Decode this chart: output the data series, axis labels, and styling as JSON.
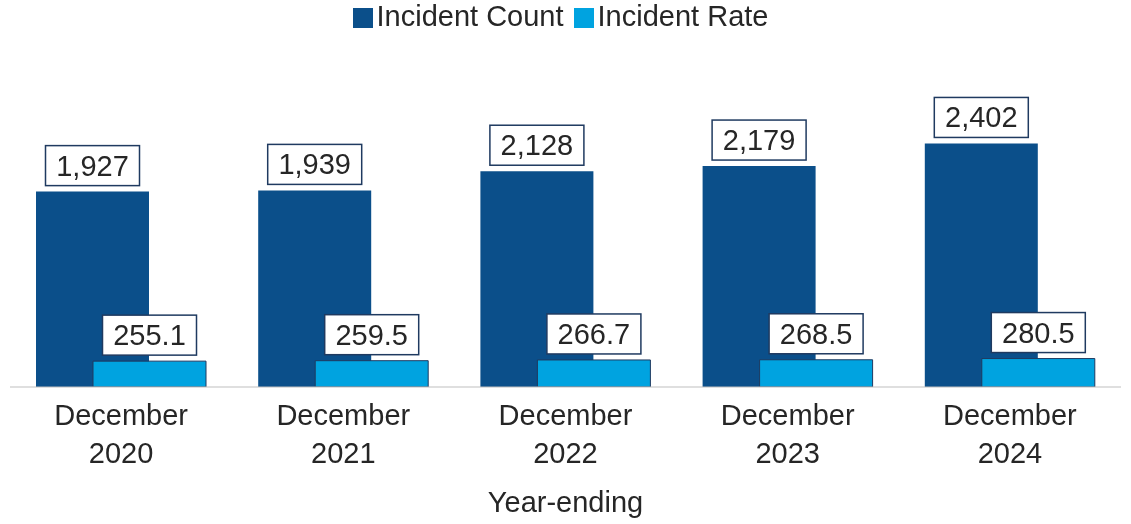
{
  "chart_data": {
    "type": "bar",
    "xlabel": "Year-ending",
    "categories": [
      "December 2020",
      "December 2021",
      "December 2022",
      "December 2023",
      "December 2024"
    ],
    "series": [
      {
        "name": "Incident Count",
        "color": "#0b4f8a",
        "values": [
          1927,
          1939,
          2128,
          2179,
          2402
        ],
        "value_labels": [
          "1,927",
          "1,939",
          "2,128",
          "2,179",
          "2,402"
        ]
      },
      {
        "name": "Incident Rate",
        "color": "#00a3e0",
        "values": [
          255.1,
          259.5,
          266.7,
          268.5,
          280.5
        ],
        "value_labels": [
          "255.1",
          "259.5",
          "266.7",
          "268.5",
          "280.5"
        ]
      }
    ],
    "legend": "top",
    "grid": false
  }
}
